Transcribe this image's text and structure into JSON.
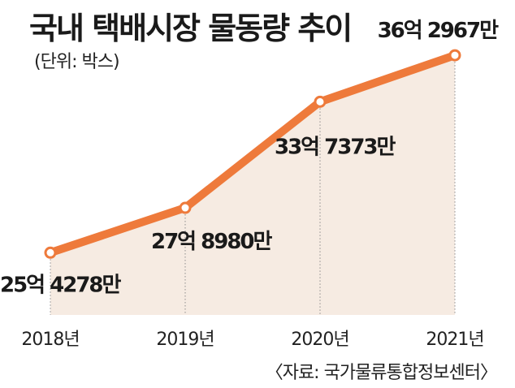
{
  "chart_data": {
    "type": "line",
    "title": "국내 택배시장 물동량 추이",
    "unit_note": "(단위: 박스)",
    "source": "〈자료: 국가물류통합정보센터〉",
    "categories": [
      "2018년",
      "2019년",
      "2020년",
      "2021년"
    ],
    "values": [
      2542780000,
      2789800000,
      3373730000,
      3629670000
    ],
    "data_labels": [
      "25억 4278만",
      "27억 8980만",
      "33억 7373만",
      "36억 2967만"
    ],
    "ylim": [
      2200000000,
      3800000000
    ],
    "colors": {
      "line": "#ee7a3b",
      "area": "#f6ebe2",
      "marker_fill": "#ffffff"
    }
  }
}
